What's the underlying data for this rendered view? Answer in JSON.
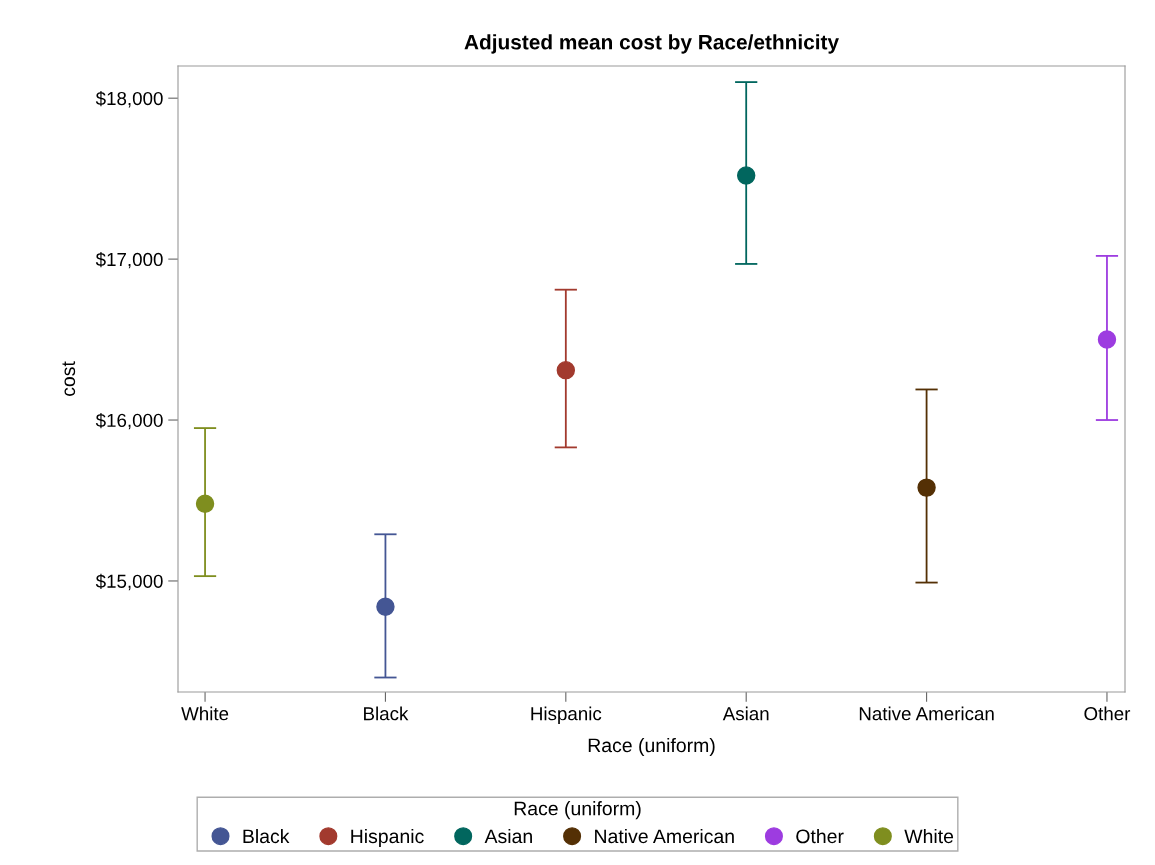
{
  "chart_data": {
    "type": "scatter",
    "title": "Adjusted mean cost by Race/ethnicity",
    "xlabel": "Race (uniform)",
    "ylabel": "cost",
    "legend_title": "Race (uniform)",
    "categories": [
      "White",
      "Black",
      "Hispanic",
      "Asian",
      "Native American",
      "Other"
    ],
    "series": [
      {
        "name": "Black",
        "color": "#445694",
        "values": [
          null,
          14840,
          null,
          null,
          null,
          null
        ],
        "errors": [
          null,
          [
            14400,
            15290
          ],
          null,
          null,
          null,
          null
        ]
      },
      {
        "name": "Hispanic",
        "color": "#a23a2e",
        "values": [
          null,
          null,
          16310,
          null,
          null,
          null
        ],
        "errors": [
          null,
          null,
          [
            15830,
            16810
          ],
          null,
          null,
          null
        ]
      },
      {
        "name": "Asian",
        "color": "#01665e",
        "values": [
          null,
          null,
          null,
          17520,
          null,
          null
        ],
        "errors": [
          null,
          null,
          null,
          [
            16970,
            18100
          ],
          null,
          null
        ]
      },
      {
        "name": "Native American",
        "color": "#543005",
        "values": [
          null,
          null,
          null,
          null,
          15580,
          null
        ],
        "errors": [
          null,
          null,
          null,
          null,
          [
            14990,
            16190
          ],
          null
        ]
      },
      {
        "name": "Other",
        "color": "#9d3ce0",
        "values": [
          null,
          null,
          null,
          null,
          null,
          16500
        ],
        "errors": [
          null,
          null,
          null,
          null,
          null,
          [
            16000,
            17020
          ]
        ]
      },
      {
        "name": "White",
        "color": "#7f8e1f",
        "values": [
          15480,
          null,
          null,
          null,
          null,
          null
        ],
        "errors": [
          [
            15030,
            15950
          ],
          null,
          null,
          null,
          null,
          null
        ]
      }
    ],
    "ylim": [
      14310,
      18200
    ],
    "yticks": [
      {
        "value": 15000,
        "label": "$15,000"
      },
      {
        "value": 16000,
        "label": "$16,000"
      },
      {
        "value": 17000,
        "label": "$17,000"
      },
      {
        "value": 18000,
        "label": "$18,000"
      }
    ],
    "grid": false,
    "legend": "bottom",
    "marker": "circle"
  }
}
